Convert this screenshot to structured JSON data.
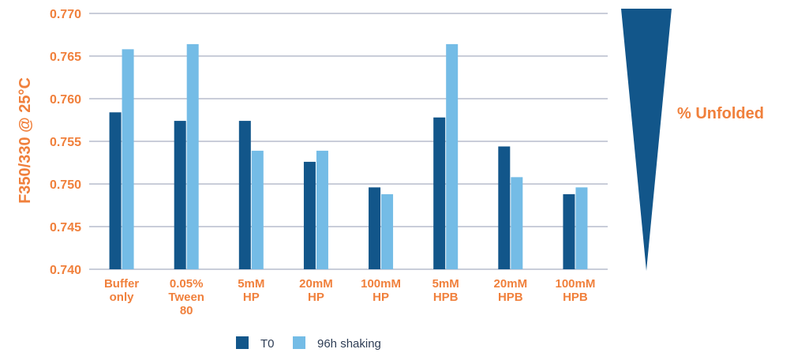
{
  "chart_data": {
    "type": "bar",
    "title": "",
    "xlabel": "",
    "ylabel": "F350/330 @ 25°C",
    "ylim": [
      0.74,
      0.77
    ],
    "yticks": [
      "0.770",
      "0.765",
      "0.760",
      "0.755",
      "0.750",
      "0.745",
      "0.740"
    ],
    "grid": true,
    "categories": [
      [
        "Buffer",
        "only"
      ],
      [
        "0.05%",
        "Tween",
        "80"
      ],
      [
        "5mM",
        "HP"
      ],
      [
        "20mM",
        "HP"
      ],
      [
        "100mM",
        "HP"
      ],
      [
        "5mM",
        "HPB"
      ],
      [
        "20mM",
        "HPB"
      ],
      [
        "100mM",
        "HPB"
      ]
    ],
    "series": [
      {
        "name": "T0",
        "color": "#12568a",
        "values": [
          0.7584,
          0.7574,
          0.7574,
          0.7526,
          0.7496,
          0.7578,
          0.7544,
          0.7488
        ]
      },
      {
        "name": "96h shaking",
        "color": "#74bce6",
        "values": [
          0.7658,
          0.7664,
          0.7539,
          0.7539,
          0.7488,
          0.7664,
          0.7508,
          0.7496
        ]
      }
    ],
    "legend_position": "bottom",
    "side_annotation": "% Unfolded",
    "side_annotation_color": "#12568a"
  }
}
